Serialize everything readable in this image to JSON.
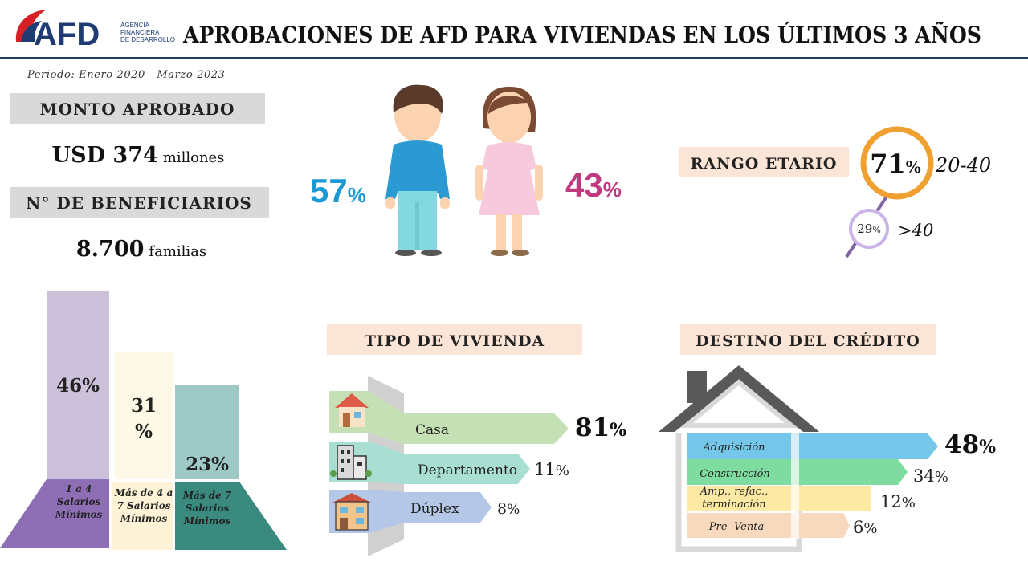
{
  "header": {
    "logo": "AFD",
    "logo_subtitle": [
      "AGENCIA",
      "FINANCIERA",
      "DE DESARROLLO"
    ],
    "title": "APROBACIONES DE AFD PARA VIVIENDAS EN LOS ÚLTIMOS 3 AÑOS"
  },
  "period": "Periodo: Enero 2020 - Marzo 2023",
  "amount": {
    "label": "MONTO APROBADO",
    "value": "USD 374",
    "unit": "millones"
  },
  "beneficiaries": {
    "label": "N° DE BENEFICIARIOS",
    "value": "8.700",
    "unit": "familias"
  },
  "gender": {
    "men": {
      "value": 57,
      "unit": "%"
    },
    "women": {
      "value": 43,
      "unit": "%"
    }
  },
  "age": {
    "label": "RANGO ETARIO",
    "groups": [
      {
        "value": 71,
        "unit": "%",
        "range": "20-40"
      },
      {
        "value": 29,
        "unit": "%",
        "range": ">40"
      }
    ]
  },
  "salary": [
    {
      "value": 46,
      "unit": "%",
      "label": "1 a 4 Salarios Mínimos"
    },
    {
      "value": 31,
      "unit": "%",
      "label": "Más de 4 a 7 Salarios Mínimos"
    },
    {
      "value": 23,
      "unit": "%",
      "label": "Más de 7 Salarios Mínimos"
    }
  ],
  "housing": {
    "title": "TIPO DE VIVIENDA",
    "items": [
      {
        "name": "Casa",
        "value": 81,
        "unit": "%"
      },
      {
        "name": "Departamento",
        "value": 11,
        "unit": "%"
      },
      {
        "name": "Dúplex",
        "value": 8,
        "unit": "%"
      }
    ]
  },
  "destination": {
    "title": "DESTINO DEL CRÉDITO",
    "items": [
      {
        "name": "Adquisición",
        "value": 48,
        "unit": "%"
      },
      {
        "name": "Construcción",
        "value": 34,
        "unit": "%"
      },
      {
        "name": "Amp., refac., terminación",
        "value": 12,
        "unit": "%"
      },
      {
        "name": "Pre- Venta",
        "value": 6,
        "unit": "%"
      }
    ]
  }
}
